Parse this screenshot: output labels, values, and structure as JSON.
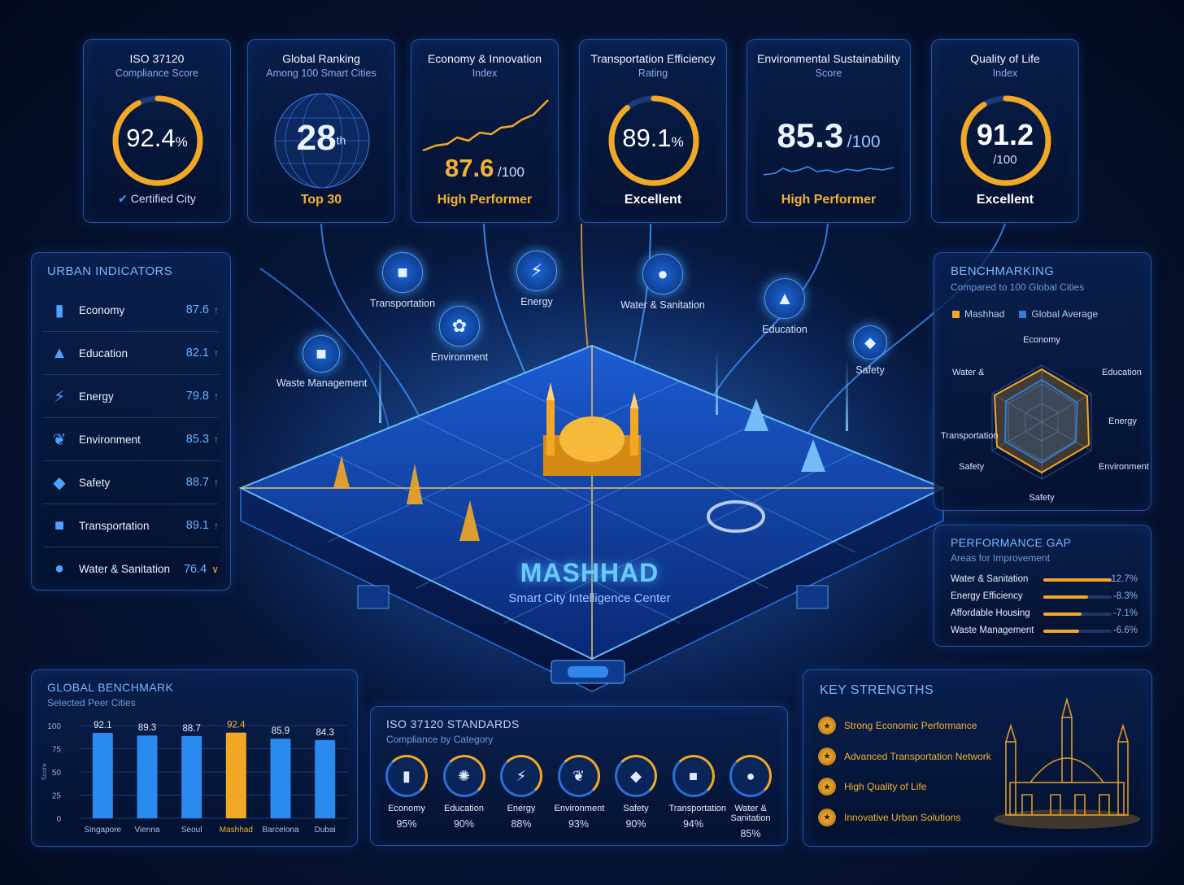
{
  "kpis": [
    {
      "title": "ISO 37120",
      "subtitle": "Compliance Score",
      "value": "92.4",
      "unit": "%",
      "footer": "Certified City",
      "progress": 0.924
    },
    {
      "title": "Global Ranking",
      "subtitle": "Among 100 Smart Cities",
      "value": "28",
      "suffix": "th",
      "footer": "Top 30"
    },
    {
      "title": "Economy & Innovation",
      "subtitle": "Index",
      "value": "87.6",
      "unit": "/100",
      "footer": "High Performer"
    },
    {
      "title": "Transportation Efficiency",
      "subtitle": "Rating",
      "value": "89.1",
      "unit": "%",
      "footer": "Excellent",
      "progress": 0.891
    },
    {
      "title": "Environmental Sustainability",
      "subtitle": "Score",
      "value": "85.3",
      "unit": "/100",
      "footer": "High Performer"
    },
    {
      "title": "Quality of Life",
      "subtitle": "Index",
      "value": "91.2",
      "unit": "/100",
      "footer": "Excellent",
      "progress": 0.912
    }
  ],
  "urban_indicators": {
    "title": "URBAN INDICATORS",
    "items": [
      {
        "label": "Economy",
        "value": "87.6",
        "trend": "up",
        "icon": "bar-chart-icon"
      },
      {
        "label": "Education",
        "value": "82.1",
        "trend": "up",
        "icon": "graduation-cap-icon"
      },
      {
        "label": "Energy",
        "value": "79.8",
        "trend": "up",
        "icon": "lightning-icon"
      },
      {
        "label": "Environment",
        "value": "85.3",
        "trend": "up",
        "icon": "leaf-icon"
      },
      {
        "label": "Safety",
        "value": "88.7",
        "trend": "up",
        "icon": "shield-icon"
      },
      {
        "label": "Transportation",
        "value": "89.1",
        "trend": "up",
        "icon": "bus-icon"
      },
      {
        "label": "Water & Sanitation",
        "value": "76.4",
        "trend": "down",
        "icon": "water-drop-icon"
      }
    ],
    "up_glyph": "↑",
    "down_glyph": "∨"
  },
  "city": {
    "name": "MASHHAD",
    "subtitle": "Smart City Intelligence Center"
  },
  "map_nodes": [
    {
      "label": "Transportation",
      "icon": "bus-icon"
    },
    {
      "label": "Energy",
      "icon": "lightning-icon"
    },
    {
      "label": "Water & Sanitation",
      "icon": "water-drop-icon"
    },
    {
      "label": "Environment",
      "icon": "leaf-icon"
    },
    {
      "label": "Education",
      "icon": "graduation-cap-icon"
    },
    {
      "label": "Safety",
      "icon": "shield-icon"
    },
    {
      "label": "Waste Management",
      "icon": "bus-icon"
    }
  ],
  "benchmarking": {
    "title": "BENCHMARKING",
    "subtitle": "Compared to 100 Global Cities",
    "legend": [
      "Mashhad",
      "Global Average"
    ],
    "axes": [
      "Economy",
      "Education",
      "Energy",
      "Environment",
      "Safety",
      "Safety",
      "Transportation",
      "Water &"
    ],
    "colors": {
      "mashhad": "#f3a825",
      "global": "#2d7fe0"
    }
  },
  "performance_gap": {
    "title": "PERFORMANCE GAP",
    "subtitle": "Areas for Improvement",
    "items": [
      {
        "label": "Water & Sanitation",
        "value": "-12.7%",
        "gap": 12.7
      },
      {
        "label": "Energy Efficiency",
        "value": "-8.3%",
        "gap": 8.3
      },
      {
        "label": "Affordable Housing",
        "value": "-7.1%",
        "gap": 7.1
      },
      {
        "label": "Waste Management",
        "value": "-6.6%",
        "gap": 6.6
      }
    ]
  },
  "global_benchmark": {
    "title": "GLOBAL BENCHMARK",
    "subtitle": "Selected Peer Cities",
    "ylabel": "Score"
  },
  "chart_data": {
    "type": "bar",
    "categories": [
      "Singapore",
      "Vienna",
      "Seoul",
      "Mashhad",
      "Barcelona",
      "Dubai"
    ],
    "values": [
      92.1,
      89.3,
      88.7,
      92.4,
      85.9,
      84.3
    ],
    "title": "GLOBAL BENCHMARK",
    "ylabel": "Score",
    "ylim": [
      0,
      100
    ],
    "yticks": [
      0,
      25,
      50,
      75,
      100
    ],
    "highlight": "Mashhad",
    "colors": {
      "default": "#2a8af0",
      "highlight": "#f3a825"
    }
  },
  "standards": {
    "title": "ISO 37120 STANDARDS",
    "subtitle": "Compliance by Category",
    "items": [
      {
        "label": "Economy",
        "value": "95%",
        "icon": "bar-chart-icon"
      },
      {
        "label": "Education",
        "value": "90%",
        "icon": "brain-icon"
      },
      {
        "label": "Energy",
        "value": "88%",
        "icon": "lightning-icon"
      },
      {
        "label": "Environment",
        "value": "93%",
        "icon": "leaf-icon"
      },
      {
        "label": "Safety",
        "value": "90%",
        "icon": "shield-icon"
      },
      {
        "label": "Transportation",
        "value": "94%",
        "icon": "bus-icon"
      },
      {
        "label": "Water & Sanitation",
        "value": "85%",
        "icon": "water-drop-icon"
      }
    ]
  },
  "key_strengths": {
    "title": "KEY STRENGTHS",
    "items": [
      "Strong Economic Performance",
      "Advanced Transportation Network",
      "High Quality of Life",
      "Innovative Urban Solutions"
    ]
  }
}
